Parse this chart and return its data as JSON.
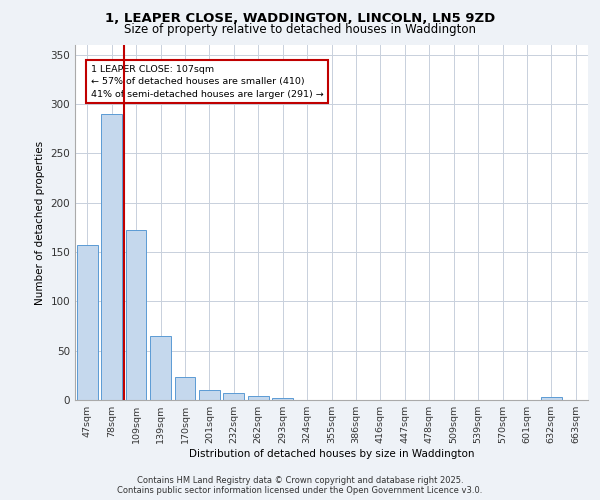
{
  "title_line1": "1, LEAPER CLOSE, WADDINGTON, LINCOLN, LN5 9ZD",
  "title_line2": "Size of property relative to detached houses in Waddington",
  "xlabel": "Distribution of detached houses by size in Waddington",
  "ylabel": "Number of detached properties",
  "categories": [
    "47sqm",
    "78sqm",
    "109sqm",
    "139sqm",
    "170sqm",
    "201sqm",
    "232sqm",
    "262sqm",
    "293sqm",
    "324sqm",
    "355sqm",
    "386sqm",
    "416sqm",
    "447sqm",
    "478sqm",
    "509sqm",
    "539sqm",
    "570sqm",
    "601sqm",
    "632sqm",
    "663sqm"
  ],
  "values": [
    157,
    290,
    172,
    65,
    23,
    10,
    7,
    4,
    2,
    0,
    0,
    0,
    0,
    0,
    0,
    0,
    0,
    0,
    0,
    3,
    0
  ],
  "bar_color": "#c5d8ed",
  "bar_edge_color": "#5b9bd5",
  "vline_x": 1.5,
  "vline_color": "#c00000",
  "annotation_text": "1 LEAPER CLOSE: 107sqm\n← 57% of detached houses are smaller (410)\n41% of semi-detached houses are larger (291) →",
  "ylim": [
    0,
    360
  ],
  "yticks": [
    0,
    50,
    100,
    150,
    200,
    250,
    300,
    350
  ],
  "footer_line1": "Contains HM Land Registry data © Crown copyright and database right 2025.",
  "footer_line2": "Contains public sector information licensed under the Open Government Licence v3.0.",
  "background_color": "#eef2f7",
  "plot_background_color": "#ffffff",
  "grid_color": "#c8d0dc"
}
